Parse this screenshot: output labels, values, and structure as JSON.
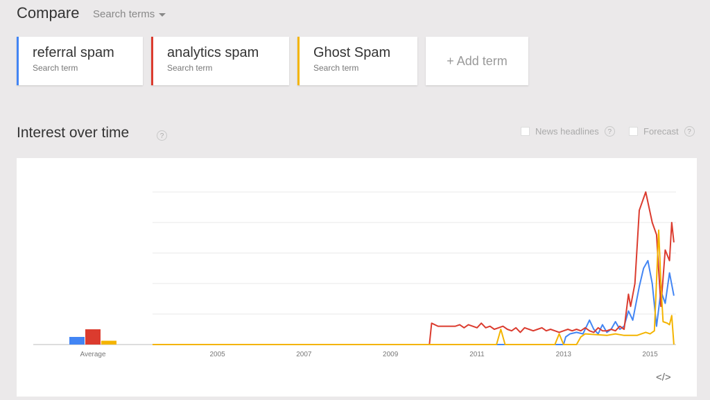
{
  "header": {
    "compare_label": "Compare",
    "search_terms_label": "Search terms"
  },
  "terms": [
    {
      "name": "referral spam",
      "sub": "Search term",
      "color": "#4285f4"
    },
    {
      "name": "analytics spam",
      "sub": "Search term",
      "color": "#db3b2e"
    },
    {
      "name": "Ghost Spam",
      "sub": "Search term",
      "color": "#f4b400"
    }
  ],
  "add_term_label": "+ Add term",
  "section": {
    "title": "Interest over time",
    "help": "?",
    "news_headlines_label": "News headlines",
    "forecast_label": "Forecast"
  },
  "embed_label": "</>",
  "chart_data": {
    "type": "line",
    "title": "",
    "xlabel": "",
    "ylabel": "",
    "ylim": [
      0,
      100
    ],
    "grid": true,
    "x_ticks": [
      "2005",
      "2007",
      "2009",
      "2011",
      "2013",
      "2015"
    ],
    "average_label": "Average",
    "averages": [
      {
        "term": "referral spam",
        "value": 5,
        "color": "#4285f4"
      },
      {
        "term": "analytics spam",
        "value": 10,
        "color": "#db3b2e"
      },
      {
        "term": "Ghost Spam",
        "value": 2.5,
        "color": "#f4b400"
      }
    ],
    "series": [
      {
        "name": "referral spam",
        "color": "#4285f4",
        "points": [
          [
            2004.0,
            0
          ],
          [
            2013.5,
            0
          ],
          [
            2013.55,
            5
          ],
          [
            2013.65,
            7
          ],
          [
            2013.8,
            8
          ],
          [
            2013.95,
            7
          ],
          [
            2014.1,
            16
          ],
          [
            2014.2,
            10
          ],
          [
            2014.3,
            7
          ],
          [
            2014.4,
            13
          ],
          [
            2014.5,
            8
          ],
          [
            2014.6,
            10
          ],
          [
            2014.7,
            15
          ],
          [
            2014.8,
            10
          ],
          [
            2014.9,
            12
          ],
          [
            2015.0,
            22
          ],
          [
            2015.1,
            16
          ],
          [
            2015.25,
            38
          ],
          [
            2015.35,
            50
          ],
          [
            2015.45,
            55
          ],
          [
            2015.55,
            40
          ],
          [
            2015.65,
            12
          ],
          [
            2015.75,
            35
          ],
          [
            2015.85,
            27
          ],
          [
            2015.95,
            47
          ],
          [
            2016.05,
            32
          ]
        ]
      },
      {
        "name": "analytics spam",
        "color": "#db3b2e",
        "points": [
          [
            2004.0,
            0
          ],
          [
            2010.4,
            0
          ],
          [
            2010.45,
            14
          ],
          [
            2010.6,
            12
          ],
          [
            2010.8,
            12
          ],
          [
            2011.0,
            12
          ],
          [
            2011.1,
            13
          ],
          [
            2011.2,
            11
          ],
          [
            2011.3,
            13
          ],
          [
            2011.4,
            12
          ],
          [
            2011.5,
            11
          ],
          [
            2011.6,
            14
          ],
          [
            2011.7,
            11
          ],
          [
            2011.8,
            12
          ],
          [
            2011.9,
            10
          ],
          [
            2012.0,
            11
          ],
          [
            2012.1,
            12
          ],
          [
            2012.2,
            10
          ],
          [
            2012.3,
            9
          ],
          [
            2012.4,
            11
          ],
          [
            2012.5,
            8
          ],
          [
            2012.6,
            11
          ],
          [
            2012.7,
            10
          ],
          [
            2012.8,
            9
          ],
          [
            2012.9,
            10
          ],
          [
            2013.0,
            11
          ],
          [
            2013.1,
            9
          ],
          [
            2013.2,
            10
          ],
          [
            2013.3,
            9
          ],
          [
            2013.4,
            8
          ],
          [
            2013.5,
            9
          ],
          [
            2013.6,
            10
          ],
          [
            2013.7,
            9
          ],
          [
            2013.8,
            10
          ],
          [
            2013.9,
            9
          ],
          [
            2014.0,
            11
          ],
          [
            2014.1,
            9
          ],
          [
            2014.2,
            8
          ],
          [
            2014.3,
            11
          ],
          [
            2014.4,
            9
          ],
          [
            2014.5,
            9
          ],
          [
            2014.6,
            10
          ],
          [
            2014.7,
            9
          ],
          [
            2014.8,
            12
          ],
          [
            2014.9,
            10
          ],
          [
            2015.0,
            33
          ],
          [
            2015.05,
            25
          ],
          [
            2015.15,
            40
          ],
          [
            2015.25,
            88
          ],
          [
            2015.4,
            100
          ],
          [
            2015.55,
            80
          ],
          [
            2015.65,
            72
          ],
          [
            2015.75,
            25
          ],
          [
            2015.85,
            62
          ],
          [
            2015.95,
            55
          ],
          [
            2016.0,
            80
          ],
          [
            2016.05,
            67
          ]
        ]
      },
      {
        "name": "Ghost Spam",
        "color": "#f4b400",
        "points": [
          [
            2004.0,
            0
          ],
          [
            2011.95,
            0
          ],
          [
            2012.05,
            10
          ],
          [
            2012.15,
            0
          ],
          [
            2013.3,
            0
          ],
          [
            2013.4,
            7
          ],
          [
            2013.5,
            0
          ],
          [
            2013.8,
            0
          ],
          [
            2013.9,
            5
          ],
          [
            2014.0,
            7
          ],
          [
            2014.5,
            6
          ],
          [
            2014.7,
            7
          ],
          [
            2014.9,
            6
          ],
          [
            2015.1,
            6
          ],
          [
            2015.2,
            6
          ],
          [
            2015.3,
            7
          ],
          [
            2015.4,
            8
          ],
          [
            2015.5,
            7
          ],
          [
            2015.6,
            9
          ],
          [
            2015.7,
            75
          ],
          [
            2015.75,
            40
          ],
          [
            2015.8,
            15
          ],
          [
            2015.9,
            14
          ],
          [
            2015.95,
            13
          ],
          [
            2016.0,
            19
          ],
          [
            2016.05,
            0
          ]
        ]
      }
    ]
  }
}
